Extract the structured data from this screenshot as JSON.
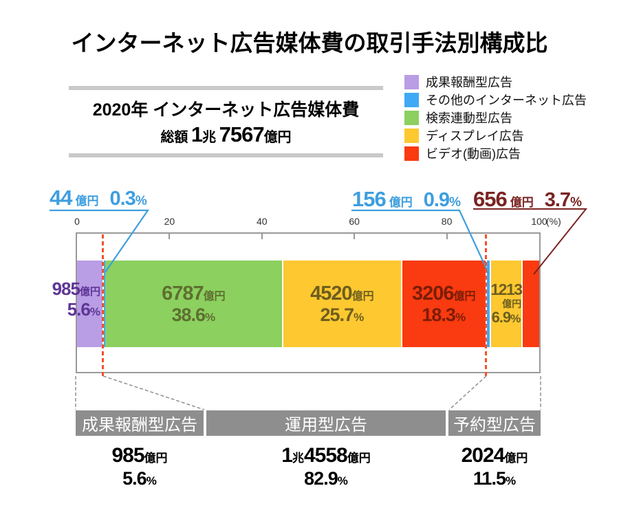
{
  "title": "インターネット広告媒体費の取引手法別構成比",
  "summary_box": {
    "line1": "2020年 インターネット広告媒体費",
    "total_label": "総額",
    "cho_value": "1",
    "cho_unit": "兆",
    "oku_value": "7567",
    "oku_unit": "億円"
  },
  "legend": [
    {
      "label": "成果報酬型広告",
      "color": "#b99de5"
    },
    {
      "label": "その他のインターネット広告",
      "color": "#3fa9f5"
    },
    {
      "label": "検索連動型広告",
      "color": "#8cd05f"
    },
    {
      "label": "ディスプレイ広告",
      "color": "#fdc830"
    },
    {
      "label": "ビデオ(動画)広告",
      "color": "#fa3a10"
    }
  ],
  "chart_data": {
    "type": "bar",
    "subtype": "horizontal-stacked-100pct",
    "unit": "億円",
    "axis": {
      "min": 0,
      "max": 100,
      "ticks": [
        0,
        20,
        40,
        60,
        80,
        100
      ],
      "unit": "(%)"
    },
    "segments": [
      {
        "name": "成果報酬型広告",
        "value": "985",
        "unit": "億円",
        "pct": "5.6",
        "pct_suffix": "%",
        "color": "#b99de5",
        "label_color": "#5e3695",
        "label_mode": "left-outside"
      },
      {
        "name": "その他のインターネット広告",
        "value": "44",
        "unit": "億円",
        "pct": "0.3",
        "pct_suffix": "%",
        "color": "#3fa9f5",
        "label_color": "#3e9edf",
        "label_mode": "none"
      },
      {
        "name": "検索連動型広告",
        "value": "6787",
        "unit": "億円",
        "pct": "38.6",
        "pct_suffix": "%",
        "color": "#8cd05f",
        "label_color": "#5d7030",
        "label_mode": "inside"
      },
      {
        "name": "ディスプレイ広告",
        "value": "4520",
        "unit": "億円",
        "pct": "25.7",
        "pct_suffix": "%",
        "color": "#fdc830",
        "label_color": "#6e5e1e",
        "label_mode": "inside"
      },
      {
        "name": "ビデオ(動画)広告",
        "value": "3206",
        "unit": "億円",
        "pct": "18.3",
        "pct_suffix": "%",
        "color": "#fa3a10",
        "label_color": "#7b1d05",
        "label_mode": "inside"
      },
      {
        "name": "その他のインターネット広告",
        "value": "156",
        "unit": "億円",
        "pct": "0.9",
        "pct_suffix": "%",
        "color": "#3fa9f5",
        "label_color": "#3e9edf",
        "label_mode": "none"
      },
      {
        "name": "ディスプレイ広告",
        "value": "1213",
        "unit": "億円",
        "pct": "6.9",
        "pct_suffix": "%",
        "color": "#fdc830",
        "label_color": "#6e5e1e",
        "label_mode": "inside-narrow"
      },
      {
        "name": "ビデオ(動画)広告",
        "value": "656",
        "unit": "億円",
        "pct": "3.7",
        "pct_suffix": "%",
        "color": "#fa3a10",
        "label_color": "#7a2422",
        "label_mode": "none"
      }
    ],
    "callouts": [
      {
        "value": "44",
        "unit": "億円",
        "pct": "0.3",
        "pct_suffix": "%",
        "color": "#3e9edf"
      },
      {
        "value": "156",
        "unit": "億円",
        "pct": "0.9",
        "pct_suffix": "%",
        "color": "#3e9edf"
      },
      {
        "value": "656",
        "unit": "億円",
        "pct": "3.7",
        "pct_suffix": "%",
        "color": "#7a2422"
      }
    ],
    "group_boundaries_pct": [
      5.6,
      88.5
    ],
    "groups": [
      {
        "name": "成果報酬型広告",
        "value_parts": [
          {
            "t": "985",
            "big": true
          },
          {
            "t": "億円",
            "big": false
          }
        ],
        "pct": "5.6",
        "pct_suffix": "%"
      },
      {
        "name": "運用型広告",
        "value_parts": [
          {
            "t": "1",
            "big": true
          },
          {
            "t": "兆",
            "big": false
          },
          {
            "t": "4558",
            "big": true
          },
          {
            "t": "億円",
            "big": false
          }
        ],
        "pct": "82.9",
        "pct_suffix": "%"
      },
      {
        "name": "予約型広告",
        "value_parts": [
          {
            "t": "2024",
            "big": true
          },
          {
            "t": "億円",
            "big": false
          }
        ],
        "pct": "11.5",
        "pct_suffix": "%"
      }
    ]
  }
}
